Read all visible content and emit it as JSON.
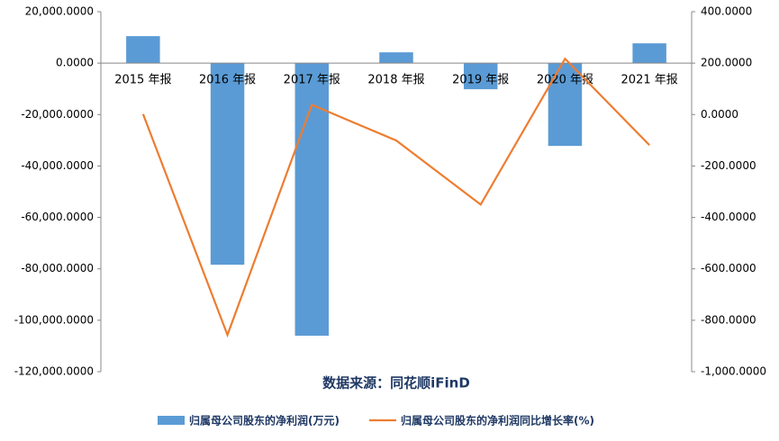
{
  "chart_data": {
    "type": "bar-line",
    "categories": [
      "2015 年报",
      "2016 年报",
      "2017 年报",
      "2018 年报",
      "2019 年报",
      "2020 年报",
      "2021 年报"
    ],
    "series": [
      {
        "name": "归属母公司股东的净利润(万元)",
        "type": "bar",
        "color": "#5b9bd5",
        "values": [
          10500,
          -78400,
          -106000,
          4200,
          -10150,
          -32200,
          7700
        ]
      },
      {
        "name": "归属母公司股东的净利润同比增长率(%)",
        "type": "line",
        "axis": "y2",
        "color": "#ed7d31",
        "values": [
          2,
          -857,
          38,
          -101,
          -350,
          217,
          -119
        ]
      }
    ],
    "ylim": [
      -120000,
      20000
    ],
    "yticks": [
      {
        "value": 20000,
        "label": "20,000.0000"
      },
      {
        "value": 0,
        "label": "0.0000"
      },
      {
        "value": -20000,
        "label": "-20,000.0000"
      },
      {
        "value": -40000,
        "label": "-40,000.0000"
      },
      {
        "value": -60000,
        "label": "-60,000.0000"
      },
      {
        "value": -80000,
        "label": "-80,000.0000"
      },
      {
        "value": -100000,
        "label": "-100,000.0000"
      },
      {
        "value": -120000,
        "label": "-120,000.0000"
      }
    ],
    "y2lim": [
      -1000,
      400
    ],
    "y2ticks": [
      {
        "value": 400,
        "label": "400.0000"
      },
      {
        "value": 200,
        "label": "200.0000"
      },
      {
        "value": 0,
        "label": "0.0000"
      },
      {
        "value": -200,
        "label": "-200.0000"
      },
      {
        "value": -400,
        "label": "-400.0000"
      },
      {
        "value": -600,
        "label": "-600.0000"
      },
      {
        "value": -800,
        "label": "-800.0000"
      },
      {
        "value": -1000,
        "label": "-1,000.0000"
      }
    ],
    "annotation": "数据来源：同花顺iFinD"
  }
}
